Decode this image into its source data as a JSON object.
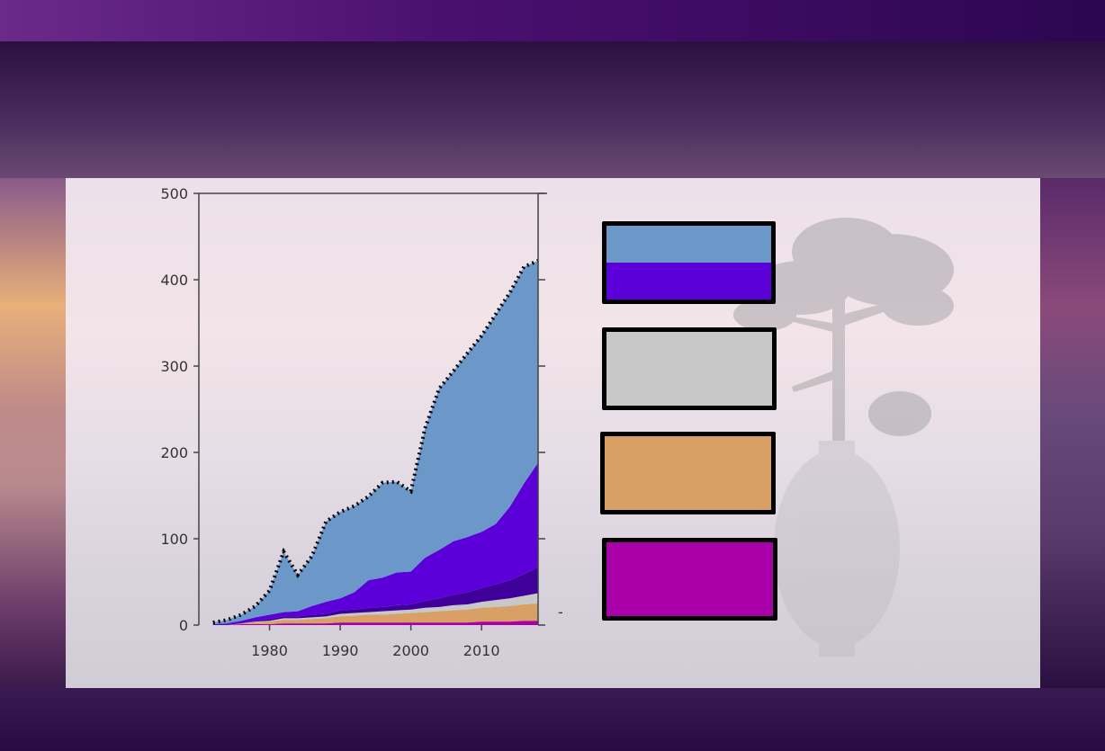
{
  "chart_data": {
    "type": "area",
    "stacked": true,
    "x": [
      1972,
      1974,
      1976,
      1978,
      1980,
      1982,
      1984,
      1986,
      1988,
      1990,
      1992,
      1994,
      1996,
      1998,
      2000,
      2002,
      2004,
      2006,
      2008,
      2010,
      2012,
      2014,
      2016,
      2018
    ],
    "series": [
      {
        "color": "#aa00aa",
        "values": [
          0,
          0,
          1,
          1,
          1,
          2,
          2,
          2,
          2,
          3,
          3,
          3,
          3,
          3,
          3,
          3,
          3,
          3,
          3,
          4,
          4,
          4,
          5,
          5
        ]
      },
      {
        "color": "#d9a066",
        "values": [
          0,
          0,
          1,
          2,
          3,
          4,
          4,
          5,
          6,
          7,
          8,
          9,
          9,
          10,
          11,
          12,
          13,
          14,
          15,
          16,
          17,
          18,
          19,
          20
        ]
      },
      {
        "color": "#c8c8c8",
        "values": [
          0,
          0,
          0,
          1,
          1,
          2,
          2,
          2,
          2,
          3,
          3,
          3,
          4,
          4,
          4,
          5,
          5,
          6,
          6,
          7,
          8,
          9,
          10,
          12
        ]
      },
      {
        "color": "#3f0099",
        "values": [
          0,
          0,
          0,
          1,
          2,
          2,
          2,
          3,
          3,
          4,
          4,
          5,
          5,
          6,
          6,
          8,
          10,
          12,
          14,
          16,
          18,
          21,
          25,
          30
        ]
      },
      {
        "color": "#5c00d9",
        "values": [
          1,
          2,
          3,
          4,
          5,
          5,
          6,
          10,
          14,
          14,
          20,
          32,
          34,
          38,
          38,
          50,
          56,
          62,
          64,
          65,
          70,
          85,
          105,
          121
        ]
      },
      {
        "color": "#6b98c8",
        "values": [
          2,
          4,
          7,
          13,
          28,
          70,
          42,
          58,
          93,
          100,
          100,
          97,
          110,
          105,
          93,
          150,
          187,
          197,
          213,
          227,
          243,
          248,
          251,
          234
        ]
      }
    ],
    "total_line": {
      "style": "dotted",
      "color": "#000000"
    },
    "xticks": [
      1980,
      1990,
      2000,
      2010
    ],
    "yticks": [
      0,
      100,
      200,
      300,
      400,
      500
    ],
    "xlim": [
      1970,
      2018
    ],
    "ylim": [
      0,
      500
    ],
    "legend_colors": [
      [
        "#6b98c8",
        "#5c00d9"
      ],
      [
        "#c8c8c8"
      ],
      [
        "#d9a066"
      ],
      [
        "#aa00aa"
      ]
    ],
    "legend_placement": "right"
  },
  "stray_mark": "-"
}
